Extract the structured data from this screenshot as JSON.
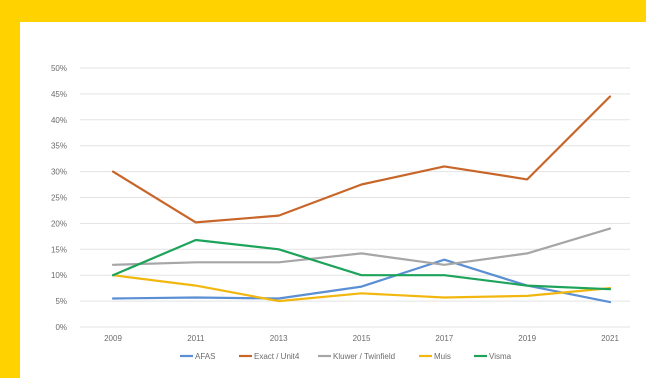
{
  "chart_data": {
    "type": "line",
    "title": "",
    "xlabel": "",
    "ylabel": "",
    "categories": [
      "2009",
      "2011",
      "2013",
      "2015",
      "2017",
      "2019",
      "2021"
    ],
    "ylim": [
      0,
      50
    ],
    "yticks": [
      "0%",
      "5%",
      "10%",
      "15%",
      "20%",
      "25%",
      "30%",
      "35%",
      "40%",
      "45%",
      "50%"
    ],
    "grid": true,
    "legend": "bottom",
    "series": [
      {
        "name": "AFAS",
        "color": "#5B8FD4",
        "values": [
          5.5,
          5.7,
          5.5,
          7.8,
          13.0,
          8.0,
          4.8
        ]
      },
      {
        "name": "Exact / Unit4",
        "color": "#C8662A",
        "values": [
          30.0,
          20.2,
          21.5,
          27.5,
          31.0,
          28.5,
          44.5
        ]
      },
      {
        "name": "Kluwer / Twinfield",
        "color": "#A6A6A6",
        "values": [
          12.0,
          12.5,
          12.5,
          14.2,
          12.0,
          14.2,
          19.0
        ]
      },
      {
        "name": "Muis",
        "color": "#F2B70F",
        "values": [
          10.0,
          8.0,
          5.0,
          6.5,
          5.7,
          6.0,
          7.5
        ]
      },
      {
        "name": "Visma",
        "color": "#1DA35A",
        "values": [
          10.0,
          16.8,
          15.0,
          10.0,
          10.0,
          8.0,
          7.3
        ]
      }
    ]
  }
}
